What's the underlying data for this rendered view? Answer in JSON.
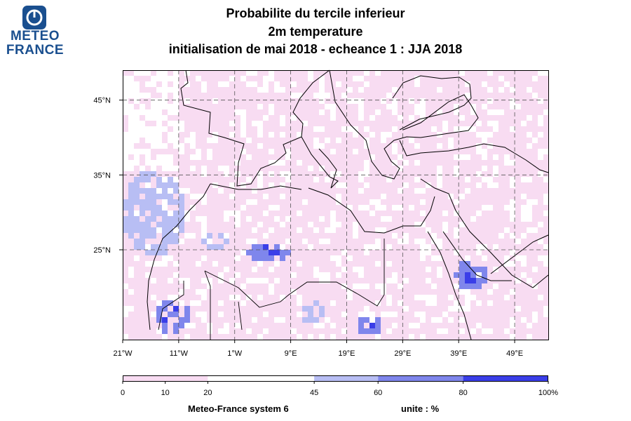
{
  "logo": {
    "text": "METEO FRANCE",
    "line1": "METEO",
    "line2": "FRANCE"
  },
  "title": {
    "line1": "Probabilite du tercile inferieur",
    "line2": "2m temperature",
    "line3": "initialisation de mai 2018  -  echeance 1 : JJA 2018"
  },
  "map": {
    "lon_range": [
      -21,
      55
    ],
    "lat_range": [
      13,
      49
    ],
    "lon_ticks": [
      "21°W",
      "11°W",
      "1°W",
      "9°E",
      "19°E",
      "29°E",
      "39°E",
      "49°E"
    ],
    "lat_ticks": [
      "45°N",
      "35°N",
      "25°N"
    ],
    "grid": "dashed"
  },
  "colorbar": {
    "ticks": [
      "0",
      "10",
      "20",
      "45",
      "60",
      "80",
      "100%"
    ],
    "colors": [
      "#f8dcf2",
      "#f8dcf2",
      "#ffffff",
      "#b8bef4",
      "#7f86ec",
      "#3a3ee8"
    ],
    "unit_label": "unite : %"
  },
  "footer": {
    "system": "Meteo-France system 6",
    "unit": "unite : %"
  }
}
